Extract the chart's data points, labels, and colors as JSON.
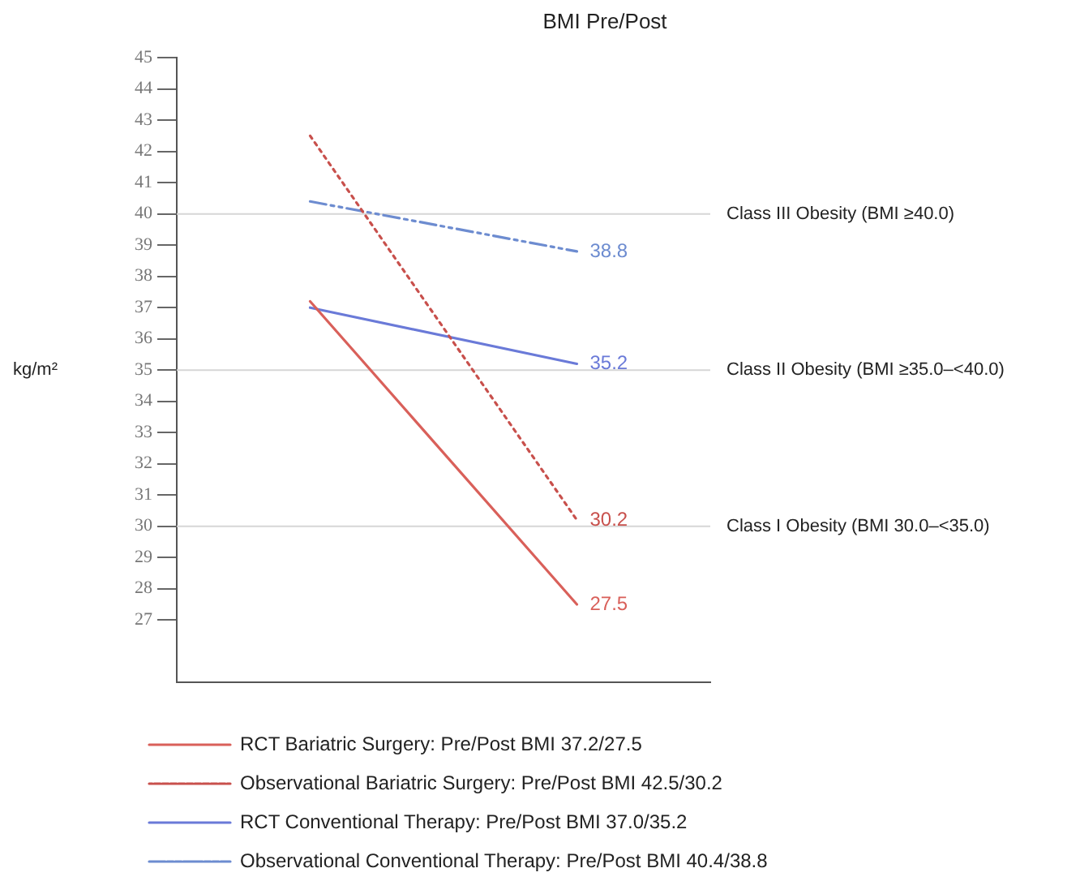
{
  "chart_data": {
    "type": "line",
    "title": "BMI Pre/Post",
    "ylabel": "kg/m²",
    "categories": [
      null,
      null
    ],
    "ylim": [
      25,
      45
    ],
    "yticks": [
      27,
      28,
      29,
      30,
      31,
      32,
      33,
      34,
      35,
      36,
      37,
      38,
      39,
      40,
      41,
      42,
      43,
      44,
      45
    ],
    "grid": false,
    "legend": "bottom",
    "marker": "none",
    "series": [
      {
        "name": "RCT Bariatric Surgery: Pre/Post BMI 37.2/27.5",
        "color": "#d9605a",
        "values": [
          37.2,
          27.5
        ],
        "line_style": "solid",
        "value_labels": [
          null,
          "27.5"
        ]
      },
      {
        "name": "Observational Bariatric Surgery: Pre/Post BMI 42.5/30.2",
        "color": "#c8504c",
        "values": [
          42.5,
          30.2
        ],
        "line_style": "dotted",
        "value_labels": [
          null,
          "30.2"
        ]
      },
      {
        "name": "RCT Conventional Therapy: Pre/Post BMI 37.0/35.2",
        "color": "#6a7ad8",
        "values": [
          37.0,
          35.2
        ],
        "line_style": "solid",
        "value_labels": [
          null,
          "35.2"
        ]
      },
      {
        "name": "Observational Conventional Therapy: Pre/Post BMI 40.4/38.8",
        "color": "#6d8cd0",
        "values": [
          40.4,
          38.8
        ],
        "line_style": "dashdot",
        "value_labels": [
          null,
          "38.8"
        ]
      }
    ],
    "ref_lines": [
      {
        "axis": "y",
        "value": 40,
        "label": "Class III Obesity (BMI ≥40.0)",
        "color": "#d6d6d6"
      },
      {
        "axis": "y",
        "value": 35,
        "label": "Class II Obesity (BMI ≥35.0–<40.0)",
        "color": "#d6d6d6"
      },
      {
        "axis": "y",
        "value": 30,
        "label": "Class I Obesity (BMI 30.0–<35.0)",
        "color": "#d6d6d6"
      }
    ]
  }
}
